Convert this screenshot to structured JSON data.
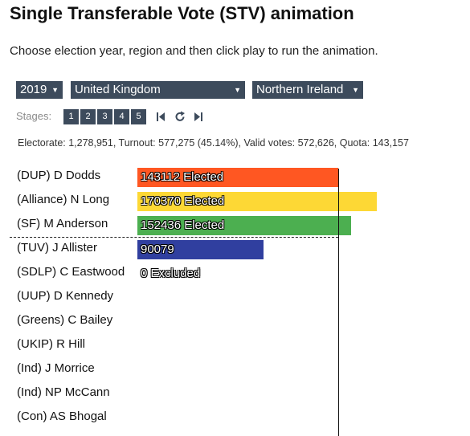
{
  "title": "Single Transferable Vote (STV) animation",
  "intro": "Choose election year, region and then click play to run the animation.",
  "selectors": {
    "year": "2019",
    "country": "United Kingdom",
    "region": "Northern Ireland"
  },
  "stages": {
    "label": "Stages:",
    "buttons": [
      "1",
      "2",
      "3",
      "4",
      "5"
    ]
  },
  "summary": "Electorate: 1,278,951, Turnout: 577,275 (45.14%), Valid votes: 572,626, Quota: 143,157",
  "quota": 143157,
  "candidates": [
    {
      "name": "(DUP) D Dodds",
      "votes": 143112,
      "status": "Elected",
      "label": "143112 Elected",
      "color": "#ff5722"
    },
    {
      "name": "(Alliance) N Long",
      "votes": 170370,
      "status": "Elected",
      "label": "170370 Elected",
      "color": "#fdd835"
    },
    {
      "name": "(SF) M Anderson",
      "votes": 152436,
      "status": "Elected",
      "label": "152436 Elected",
      "color": "#4caf50"
    },
    {
      "name": "(TUV) J Allister",
      "votes": 90079,
      "status": "",
      "label": "90079",
      "color": "#303f9f"
    },
    {
      "name": "(SDLP) C Eastwood",
      "votes": 0,
      "status": "Excluded",
      "label": "0 Excluded",
      "color": ""
    },
    {
      "name": "(UUP) D Kennedy",
      "votes": 0,
      "status": "",
      "label": "",
      "color": ""
    },
    {
      "name": "(Greens) C Bailey",
      "votes": 0,
      "status": "",
      "label": "",
      "color": ""
    },
    {
      "name": "(UKIP) R Hill",
      "votes": 0,
      "status": "",
      "label": "",
      "color": ""
    },
    {
      "name": "(Ind) J Morrice",
      "votes": 0,
      "status": "",
      "label": "",
      "color": ""
    },
    {
      "name": "(Ind) NP McCann",
      "votes": 0,
      "status": "",
      "label": "",
      "color": ""
    },
    {
      "name": "(Con) AS Bhogal",
      "votes": 0,
      "status": "",
      "label": "",
      "color": ""
    }
  ]
}
